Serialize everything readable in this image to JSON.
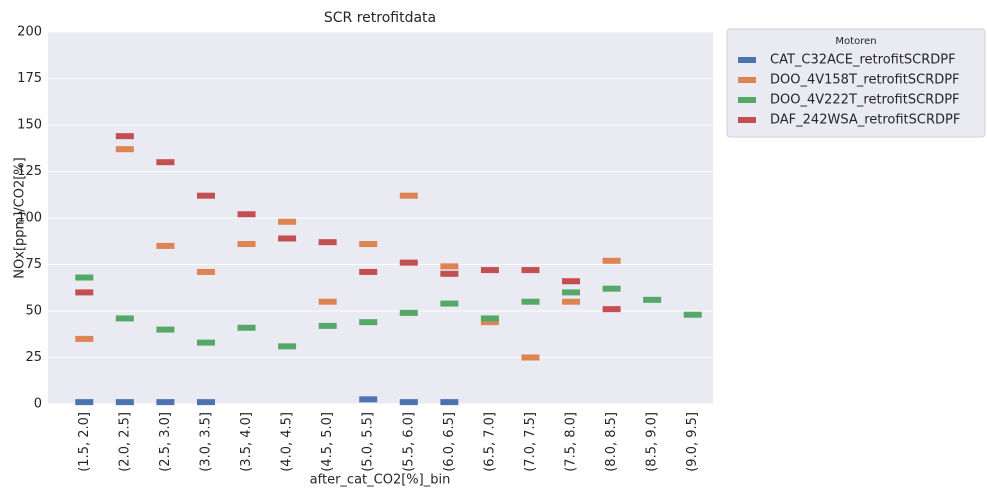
{
  "chart_data": {
    "type": "bar-marker",
    "title": "SCR retrofitdata",
    "x_label": "after_cat_CO2[%]_bin",
    "y_label": "NOx[ppm]/CO2[%]",
    "legend_title": "Motoren",
    "legend_position": "outside right",
    "categories": [
      "(1.5, 2.0]",
      "(2.0, 2.5]",
      "(2.5, 3.0]",
      "(3.0, 3.5]",
      "(3.5, 4.0]",
      "(4.0, 4.5]",
      "(4.5, 5.0]",
      "(5.0, 5.5]",
      "(5.5, 6.0]",
      "(6.0, 6.5]",
      "(6.5, 7.0]",
      "(7.0, 7.5]",
      "(7.5, 8.0]",
      "(8.0, 8.5]",
      "(8.5, 9.0]",
      "(9.0, 9.5]"
    ],
    "series": [
      {
        "name": "CAT_C32ACE_retrofitSCRDPF",
        "color": "#4c72b0",
        "values": [
          1,
          1,
          1,
          1,
          null,
          null,
          null,
          2.5,
          1,
          1,
          null,
          null,
          null,
          null,
          null,
          null
        ]
      },
      {
        "name": "DOO_4V158T_retrofitSCRDPF",
        "color": "#dd8452",
        "values": [
          35,
          137,
          85,
          71,
          86,
          98,
          55,
          86,
          112,
          74,
          44,
          25,
          55,
          77,
          null,
          null
        ]
      },
      {
        "name": "DOO_4V222T_retrofitSCRDPF",
        "color": "#55a868",
        "values": [
          68,
          46,
          40,
          33,
          41,
          31,
          42,
          44,
          49,
          54,
          46,
          55,
          60,
          62,
          56,
          48
        ]
      },
      {
        "name": "DAF_242WSA_retrofitSCRDPF",
        "color": "#c44e52",
        "values": [
          60,
          144,
          130,
          112,
          102,
          89,
          87,
          71,
          76,
          70,
          72,
          72,
          66,
          51,
          null,
          null
        ]
      }
    ],
    "ylim": [
      0,
      200
    ],
    "yticks": [
      0,
      25,
      50,
      75,
      100,
      125,
      150,
      175,
      200
    ],
    "grid": true
  }
}
